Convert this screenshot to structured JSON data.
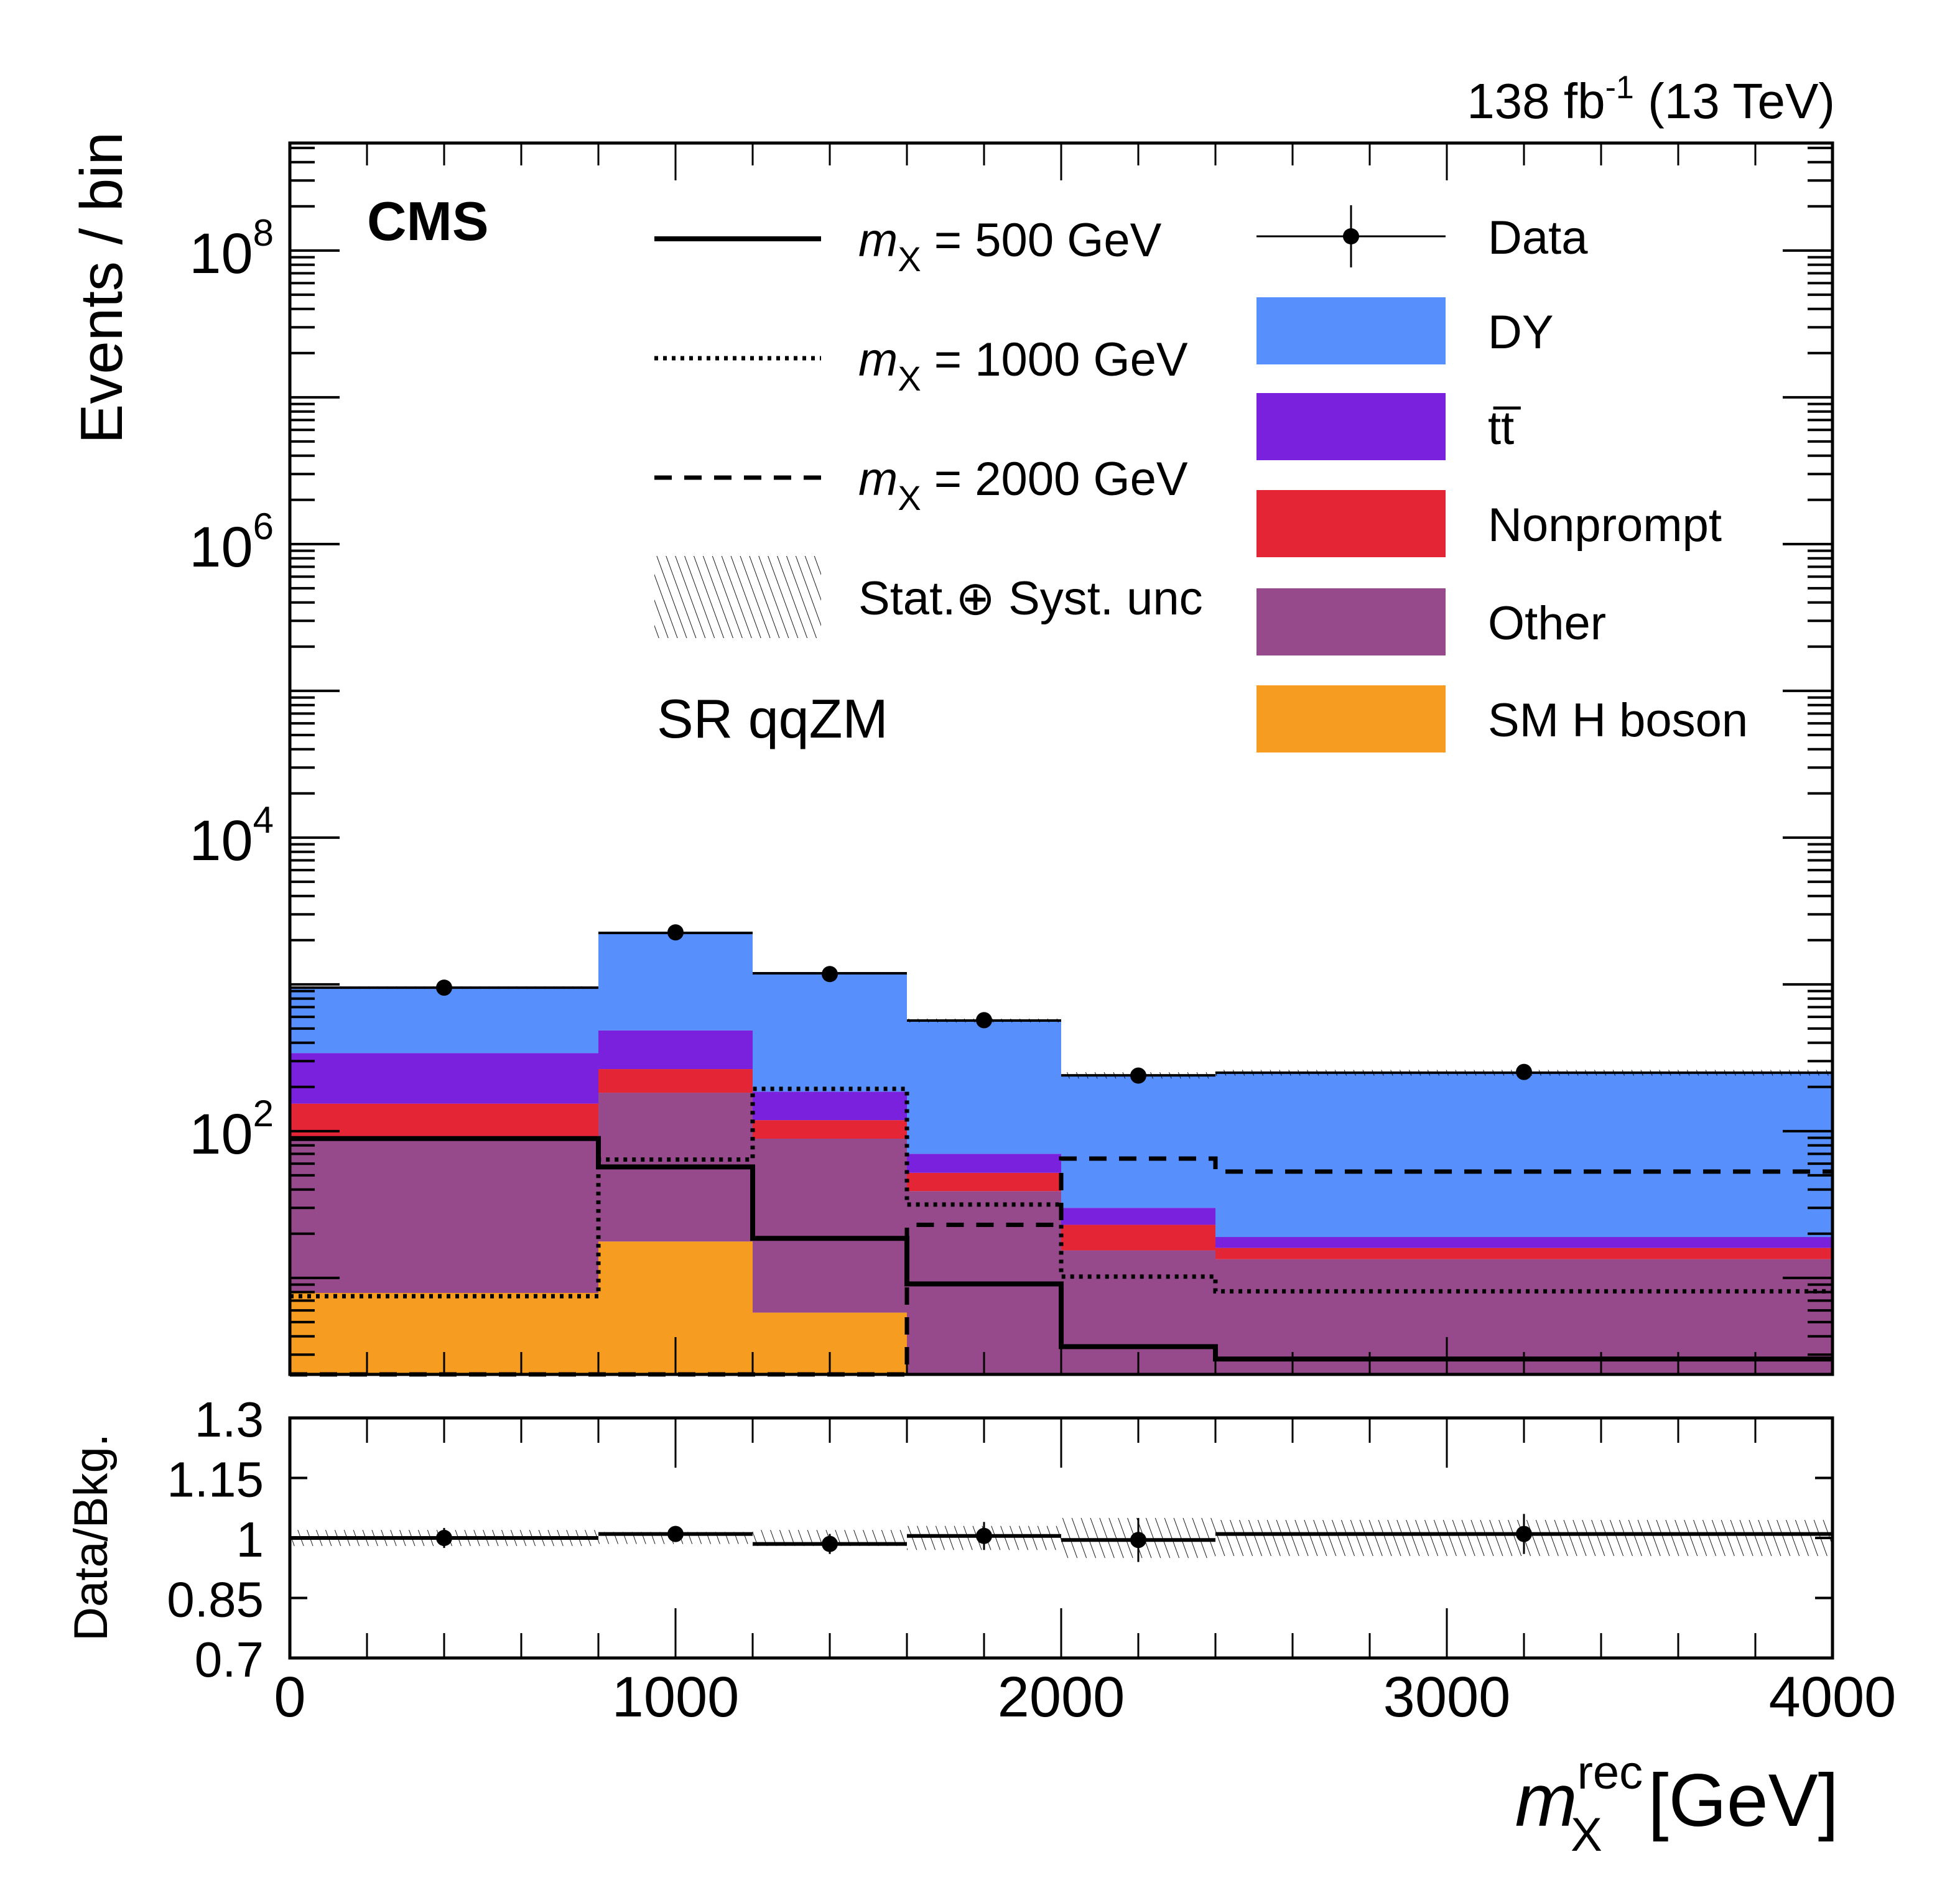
{
  "chart_data": {
    "type": "bar",
    "experiment_label": "CMS",
    "lumi_label": "138 fb",
    "lumi_exponent": "-1",
    "energy_label": "(13 TeV)",
    "region_label": "SR qqZM",
    "ylabel": "Events / bin",
    "xlabel_main": "m",
    "xlabel_sup": "rec",
    "xlabel_sub": "X",
    "xlabel_unit": "[GeV]",
    "ratio_ylabel": "Data/Bkg.",
    "xlim": [
      0,
      4000
    ],
    "ylim": [
      2.2,
      540000000
    ],
    "yscale": "log",
    "ratio_ylim": [
      0.7,
      1.3
    ],
    "bin_edges": [
      0,
      800,
      1200,
      1600,
      2000,
      2400,
      4000
    ],
    "x_ticks": [
      "0",
      "1000",
      "2000",
      "3000",
      "4000"
    ],
    "x_tick_values": [
      0,
      1000,
      2000,
      3000,
      4000
    ],
    "y_ticks": [
      {
        "base": "10",
        "exp": "2",
        "value": 100
      },
      {
        "base": "10",
        "exp": "4",
        "value": 10000
      },
      {
        "base": "10",
        "exp": "6",
        "value": 1000000
      },
      {
        "base": "10",
        "exp": "8",
        "value": 100000000
      }
    ],
    "ratio_ticks": [
      "1.3",
      "1.15",
      "1",
      "0.85",
      "0.7"
    ],
    "ratio_tick_values": [
      1.3,
      1.15,
      1.0,
      0.85,
      0.7
    ],
    "backgrounds": [
      {
        "name": "SM H boson",
        "color": "#f69d21",
        "values": [
          7.9,
          17.7,
          5.8,
          0.0,
          0.0,
          0.0
        ]
      },
      {
        "name": "Other",
        "color": "#964a8b",
        "values": [
          81,
          165,
          83,
          39,
          15.4,
          13.4
        ]
      },
      {
        "name": "Nonprompt",
        "color": "#e42536",
        "values": [
          65,
          82,
          30,
          13,
          7.6,
          2.6
        ]
      },
      {
        "name": "tt̅",
        "color": "#7a21dd",
        "values": [
          186,
          221,
          67,
          18,
          7,
          3
        ]
      },
      {
        "name": "DY",
        "color": "#5790fc",
        "values": [
          610,
          1754,
          1004,
          497,
          210,
          231
        ]
      }
    ],
    "total_background": [
      950,
      2240,
      1190,
      567,
      240,
      250
    ],
    "data": {
      "name": "Data",
      "values": [
        950,
        2260,
        1175,
        570,
        239,
        253
      ]
    },
    "signals": [
      {
        "name": "m_X = 500 GeV",
        "style": "solid",
        "values": [
          89,
          57,
          18.6,
          9.1,
          3.4,
          2.8
        ]
      },
      {
        "name": "m_X = 1000 GeV",
        "style": "dotted",
        "values": [
          7.5,
          64,
          194,
          31.6,
          10.2,
          8.1
        ]
      },
      {
        "name": "m_X = 2000 GeV",
        "style": "dashed",
        "values": [
          2.2,
          2.2,
          2.2,
          23,
          65,
          53
        ]
      }
    ],
    "ratio": {
      "values": [
        1.0,
        1.01,
        0.985,
        1.005,
        0.995,
        1.01
      ],
      "errors": [
        0.025,
        0.02,
        0.025,
        0.035,
        0.055,
        0.05
      ],
      "band_unc": [
        0.02,
        0.015,
        0.02,
        0.03,
        0.05,
        0.045
      ]
    },
    "legend_left": [
      {
        "key": "sig500",
        "label_pre": "m",
        "label_sub": "X",
        "label_post": " = 500 GeV"
      },
      {
        "key": "sig1000",
        "label_pre": "m",
        "label_sub": "X",
        "label_post": " = 1000 GeV"
      },
      {
        "key": "sig2000",
        "label_pre": "m",
        "label_sub": "X",
        "label_post": " = 2000 GeV"
      },
      {
        "key": "unc",
        "label_pre": "Stat.⊕ Syst. unc",
        "label_sub": "",
        "label_post": ""
      }
    ],
    "legend_right": [
      "Data",
      "DY",
      "tt̅",
      "Nonprompt",
      "Other",
      "SM H boson"
    ],
    "legend_placement": "top"
  }
}
